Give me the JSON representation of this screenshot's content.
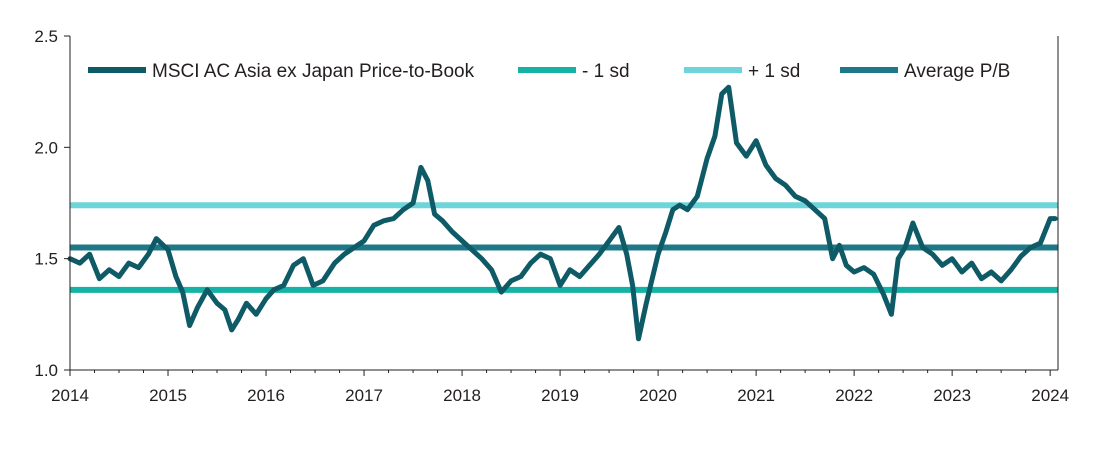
{
  "chart_data": {
    "type": "line",
    "title": "",
    "xlabel": "",
    "ylabel": "",
    "xlim": [
      2014.0,
      2024.08
    ],
    "ylim": [
      1.0,
      2.5
    ],
    "grid": false,
    "legend_position": "top",
    "x_ticks": [
      "2014",
      "2015",
      "2016",
      "2017",
      "2018",
      "2019",
      "2020",
      "2021",
      "2022",
      "2023",
      "2024"
    ],
    "y_ticks": [
      "1.0",
      "1.5",
      "2.0",
      "2.5"
    ],
    "series": [
      {
        "name": "MSCI AC Asia ex Japan Price-to-Book",
        "color": "#0e5a66",
        "x": [
          2014.0,
          2014.1,
          2014.2,
          2014.3,
          2014.4,
          2014.5,
          2014.6,
          2014.7,
          2014.8,
          2014.88,
          2015.0,
          2015.08,
          2015.15,
          2015.22,
          2015.3,
          2015.4,
          2015.5,
          2015.58,
          2015.65,
          2015.72,
          2015.8,
          2015.9,
          2016.0,
          2016.08,
          2016.18,
          2016.28,
          2016.38,
          2016.48,
          2016.58,
          2016.7,
          2016.8,
          2016.9,
          2017.0,
          2017.1,
          2017.2,
          2017.3,
          2017.4,
          2017.5,
          2017.58,
          2017.65,
          2017.72,
          2017.8,
          2017.9,
          2018.0,
          2018.1,
          2018.2,
          2018.3,
          2018.4,
          2018.5,
          2018.6,
          2018.7,
          2018.8,
          2018.9,
          2019.0,
          2019.1,
          2019.2,
          2019.3,
          2019.4,
          2019.5,
          2019.6,
          2019.68,
          2019.74,
          2019.8,
          2019.88,
          2020.0,
          2020.08,
          2020.15,
          2020.22,
          2020.3,
          2020.4,
          2020.5,
          2020.58,
          2020.65,
          2020.72,
          2020.8,
          2020.9,
          2021.0,
          2021.1,
          2021.2,
          2021.3,
          2021.4,
          2021.5,
          2021.6,
          2021.7,
          2021.78,
          2021.85,
          2021.92,
          2022.0,
          2022.1,
          2022.2,
          2022.3,
          2022.38,
          2022.45,
          2022.52,
          2022.6,
          2022.7,
          2022.8,
          2022.9,
          2023.0,
          2023.1,
          2023.2,
          2023.3,
          2023.4,
          2023.5,
          2023.6,
          2023.7,
          2023.8,
          2023.9,
          2024.0,
          2024.05
        ],
        "y": [
          1.5,
          1.48,
          1.52,
          1.41,
          1.45,
          1.42,
          1.48,
          1.46,
          1.52,
          1.59,
          1.54,
          1.42,
          1.35,
          1.2,
          1.28,
          1.36,
          1.3,
          1.27,
          1.18,
          1.23,
          1.3,
          1.25,
          1.32,
          1.36,
          1.38,
          1.47,
          1.5,
          1.38,
          1.4,
          1.48,
          1.52,
          1.55,
          1.58,
          1.65,
          1.67,
          1.68,
          1.72,
          1.75,
          1.91,
          1.85,
          1.7,
          1.67,
          1.62,
          1.58,
          1.54,
          1.5,
          1.45,
          1.35,
          1.4,
          1.42,
          1.48,
          1.52,
          1.5,
          1.38,
          1.45,
          1.42,
          1.47,
          1.52,
          1.58,
          1.64,
          1.52,
          1.38,
          1.14,
          1.3,
          1.52,
          1.62,
          1.72,
          1.74,
          1.72,
          1.78,
          1.95,
          2.05,
          2.24,
          2.27,
          2.02,
          1.96,
          2.03,
          1.92,
          1.86,
          1.83,
          1.78,
          1.76,
          1.72,
          1.68,
          1.5,
          1.56,
          1.47,
          1.44,
          1.46,
          1.43,
          1.34,
          1.25,
          1.5,
          1.55,
          1.66,
          1.55,
          1.52,
          1.47,
          1.5,
          1.44,
          1.48,
          1.41,
          1.44,
          1.4,
          1.45,
          1.51,
          1.55,
          1.57,
          1.68,
          1.68
        ]
      },
      {
        "name": "- 1 sd",
        "color": "#15b3a5",
        "value": 1.36
      },
      {
        "name": "+ 1 sd",
        "color": "#6dd5d9",
        "value": 1.74
      },
      {
        "name": "Average P/B",
        "color": "#1f7887",
        "value": 1.55
      }
    ]
  }
}
